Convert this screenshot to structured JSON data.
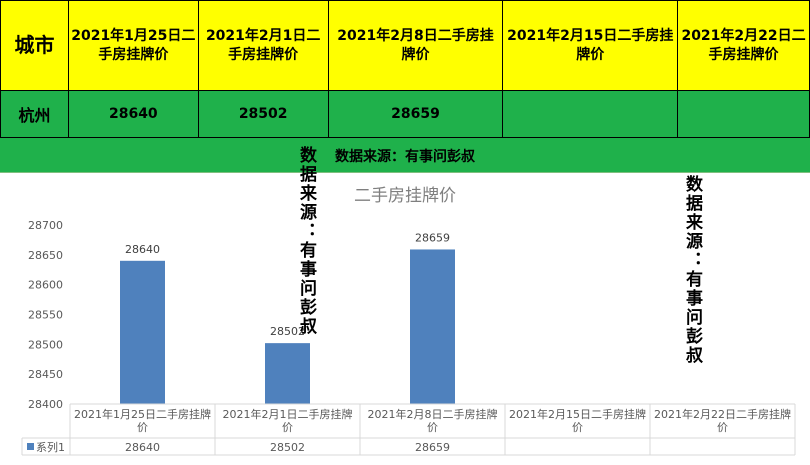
{
  "table": {
    "headers": [
      "城市",
      "2021年1月25日二手房挂牌价",
      "2021年2月1日二手房挂牌价",
      "2021年2月8日二手房挂牌价",
      "2021年2月15日二手房挂牌价",
      "2021年2月22日二手房挂牌价"
    ],
    "row": [
      "杭州",
      "28640",
      "28502",
      "28659",
      "",
      ""
    ]
  },
  "source_label": "数据来源：有事问彭叔",
  "watermarks": [
    "数据来源：有事问彭叔",
    "数据来源：有事问彭叔"
  ],
  "colors": {
    "header_bg": "#ffff00",
    "row_bg": "#1fb14b",
    "bar": "#4f81bd"
  },
  "chart_data": {
    "type": "bar",
    "title": "二手房挂牌价",
    "categories": [
      "2021年1月25日二手房挂牌价",
      "2021年2月1日二手房挂牌价",
      "2021年2月8日二手房挂牌价",
      "2021年2月15日二手房挂牌价",
      "2021年2月22日二手房挂牌价"
    ],
    "series": [
      {
        "name": "系列1",
        "values": [
          28640,
          28502,
          28659,
          null,
          null
        ]
      }
    ],
    "ylim": [
      28400,
      28700
    ],
    "yticks": [
      28400,
      28450,
      28500,
      28550,
      28600,
      28650,
      28700
    ],
    "data_labels": true,
    "grid": false,
    "legend": "data-table"
  }
}
